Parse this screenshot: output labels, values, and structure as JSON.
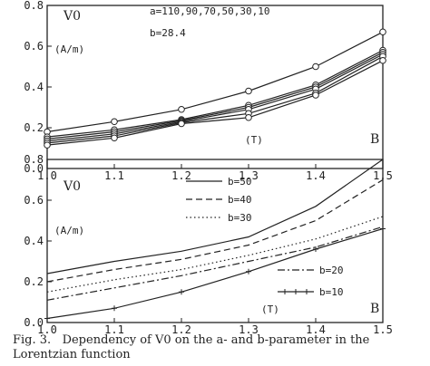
{
  "caption": {
    "line1": "Fig. 3.   Dependency of V0 on the a- and b-parameter in the",
    "line2": "Lorentzian function"
  },
  "chart_data": [
    {
      "type": "line",
      "ylabel": "V0",
      "yunit": "(A/m)",
      "xmarker": "(T)",
      "xlabel": "B",
      "annotation_a": "a=110,90,70,50,30,10",
      "annotation_b": "b=28.4",
      "xlim": [
        1.0,
        1.5
      ],
      "ylim": [
        0.0,
        0.8
      ],
      "xticks": [
        "1.0",
        "1.1",
        "1.2",
        "1.3",
        "1.4",
        "1.5"
      ],
      "yticks": [
        "0.0",
        "0.2",
        "0.4",
        "0.6",
        "0.8"
      ],
      "x": [
        1.0,
        1.1,
        1.2,
        1.3,
        1.4,
        1.5
      ],
      "series": [
        {
          "values": [
            0.18,
            0.23,
            0.29,
            0.38,
            0.5,
            0.67
          ]
        },
        {
          "values": [
            0.155,
            0.19,
            0.24,
            0.31,
            0.41,
            0.58
          ]
        },
        {
          "values": [
            0.145,
            0.18,
            0.235,
            0.3,
            0.4,
            0.57
          ]
        },
        {
          "values": [
            0.135,
            0.17,
            0.23,
            0.29,
            0.39,
            0.56
          ]
        },
        {
          "values": [
            0.125,
            0.16,
            0.225,
            0.27,
            0.37,
            0.55
          ]
        },
        {
          "values": [
            0.115,
            0.15,
            0.22,
            0.25,
            0.36,
            0.53
          ]
        }
      ]
    },
    {
      "type": "line",
      "ylabel": "V0",
      "yunit": "(A/m)",
      "xmarker": "(T)",
      "xlabel": "B",
      "xlim": [
        1.0,
        1.5
      ],
      "ylim": [
        0.0,
        0.8
      ],
      "xticks": [
        "1.0",
        "1.1",
        "1.2",
        "1.3",
        "1.4",
        "1.5"
      ],
      "yticks": [
        "0.0",
        "0.2",
        "0.4",
        "0.6",
        "0.8"
      ],
      "x": [
        1.0,
        1.1,
        1.2,
        1.3,
        1.4,
        1.5
      ],
      "series": [
        {
          "name": "b=50",
          "style": "solid",
          "values": [
            0.24,
            0.3,
            0.35,
            0.42,
            0.57,
            0.8
          ]
        },
        {
          "name": "b=40",
          "style": "dashed",
          "values": [
            0.2,
            0.26,
            0.31,
            0.38,
            0.5,
            0.7
          ]
        },
        {
          "name": "b=30",
          "style": "dotted",
          "values": [
            0.15,
            0.21,
            0.26,
            0.33,
            0.41,
            0.52
          ]
        },
        {
          "name": "b=20",
          "style": "dashdot",
          "values": [
            0.11,
            0.17,
            0.23,
            0.3,
            0.37,
            0.47
          ]
        },
        {
          "name": "b=10",
          "style": "plus",
          "values": [
            0.02,
            0.07,
            0.15,
            0.25,
            0.36,
            0.46
          ]
        }
      ]
    }
  ]
}
